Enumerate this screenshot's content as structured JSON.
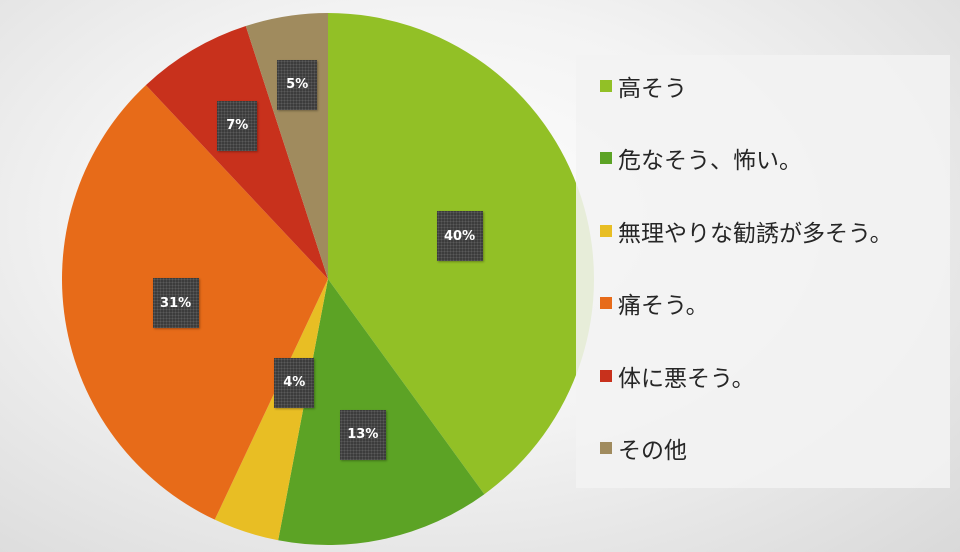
{
  "chart_data": {
    "type": "pie",
    "title": "",
    "start_angle": "12 o'clock, clockwise",
    "legend_position": "right",
    "slices": [
      {
        "label": "高そう",
        "value": 40,
        "value_label": "40%",
        "color": "#92c026"
      },
      {
        "label": "危なそう、怖い。",
        "value": 13,
        "value_label": "13%",
        "color": "#5ca325"
      },
      {
        "label": "無理やりな勧誘が多そう。",
        "value": 4,
        "value_label": "4%",
        "color": "#e8be24"
      },
      {
        "label": "痛そう。",
        "value": 31,
        "value_label": "31%",
        "color": "#e76b19"
      },
      {
        "label": "体に悪そう。",
        "value": 7,
        "value_label": "7%",
        "color": "#c8311c"
      },
      {
        "label": "その他",
        "value": 5,
        "value_label": "5%",
        "color": "#a08b5e"
      }
    ]
  }
}
